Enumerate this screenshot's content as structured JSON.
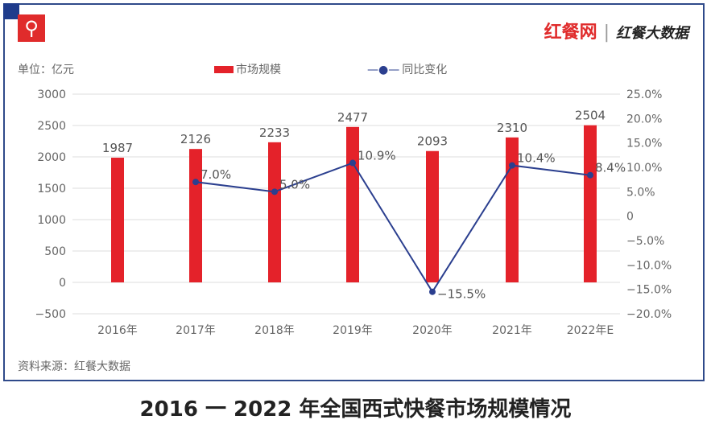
{
  "brand": {
    "logo1": "红餐网",
    "logo2": "红餐大数据",
    "watermark": "红餐大数据"
  },
  "legend": {
    "unit": "单位：亿元",
    "bar": "市场规模",
    "line": "同比变化"
  },
  "source": "资料来源：红餐大数据",
  "caption": "2016 一 2022 年全国西式快餐市场规模情况",
  "colors": {
    "bar": "#e4222a",
    "line": "#2b3f8f",
    "grid": "#dddddd"
  },
  "chart_data": {
    "type": "bar+line",
    "categories": [
      "2016年",
      "2017年",
      "2018年",
      "2019年",
      "2020年",
      "2021年",
      "2022年E"
    ],
    "series": [
      {
        "name": "市场规模",
        "axis": "left",
        "values": [
          1987,
          2126,
          2233,
          2477,
          2093,
          2310,
          2504
        ],
        "labels": [
          "1987",
          "2126",
          "2233",
          "2477",
          "2093",
          "2310",
          "2504"
        ]
      },
      {
        "name": "同比变化",
        "axis": "right",
        "values": [
          null,
          7.0,
          5.0,
          10.9,
          -15.5,
          10.4,
          8.4
        ],
        "labels": [
          "",
          "7.0%",
          "5.0%",
          "10.9%",
          "−15.5%",
          "10.4%",
          "8.4%"
        ]
      }
    ],
    "yleft": {
      "range": [
        -500,
        3000
      ],
      "ticks": [
        "3000",
        "2500",
        "2000",
        "1500",
        "1000",
        "500",
        "0",
        "−500"
      ]
    },
    "yright": {
      "range": [
        -20,
        25
      ],
      "ticks": [
        "25.0%",
        "20.0%",
        "15.0%",
        "10.0%",
        "5.0%",
        "0",
        "−5.0%",
        "−10.0%",
        "−15.0%",
        "−20.0%"
      ]
    }
  }
}
